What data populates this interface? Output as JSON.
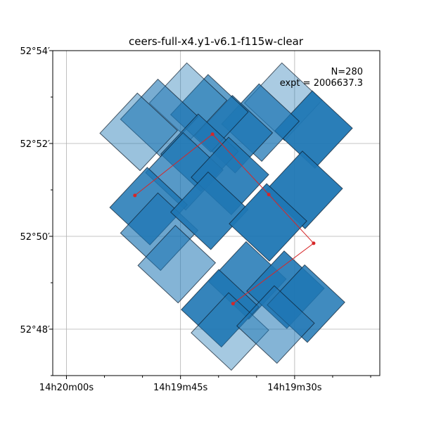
{
  "chart_data": {
    "type": "footprint-map",
    "title": "ceers-full-x4.y1-v6.1-f115w-clear",
    "xlabel": "",
    "ylabel": "",
    "annotations": {
      "n": "N=280",
      "expt": "expt = 2006637.3"
    },
    "x_ticks": [
      {
        "ra_s": 0,
        "label": "14h20m00s"
      },
      {
        "ra_s": 15,
        "label": "14h19m45s"
      },
      {
        "ra_s": 30,
        "label": "14h19m30s"
      }
    ],
    "y_ticks": [
      {
        "dec_arcmin": 54,
        "label": "52°54′"
      },
      {
        "dec_arcmin": 52,
        "label": "52°52′"
      },
      {
        "dec_arcmin": 50,
        "label": "52°50′"
      },
      {
        "dec_arcmin": 48,
        "label": "52°48′"
      }
    ],
    "xlim_ra_seconds_past_14h19m": [
      61.8,
      18.8
    ],
    "ylim_dec_arcmin_past_52deg": [
      47.0,
      54.0
    ],
    "grid": true,
    "footprint_color": "#1f77b4",
    "path_color": "#d62728",
    "path_points": [
      {
        "ra_s": 51.0,
        "dec_arcmin": 50.88
      },
      {
        "ra_s": 40.8,
        "dec_arcmin": 52.2
      },
      {
        "ra_s": 33.4,
        "dec_arcmin": 50.9
      },
      {
        "ra_s": 27.5,
        "dec_arcmin": 49.85
      },
      {
        "ra_s": 38.1,
        "dec_arcmin": 48.55
      }
    ],
    "footprints": [
      {
        "ra_s": 31.5,
        "dec_arcmin": 52.9,
        "alpha": 0.38
      },
      {
        "ra_s": 27.5,
        "dec_arcmin": 52.3,
        "alpha": 0.95
      },
      {
        "ra_s": 34.5,
        "dec_arcmin": 52.45,
        "alpha": 0.75
      },
      {
        "ra_s": 38.0,
        "dec_arcmin": 52.2,
        "alpha": 0.85
      },
      {
        "ra_s": 41.2,
        "dec_arcmin": 52.65,
        "alpha": 0.7
      },
      {
        "ra_s": 44.0,
        "dec_arcmin": 52.9,
        "alpha": 0.4
      },
      {
        "ra_s": 47.8,
        "dec_arcmin": 52.55,
        "alpha": 0.6
      },
      {
        "ra_s": 50.5,
        "dec_arcmin": 52.25,
        "alpha": 0.45
      },
      {
        "ra_s": 42.5,
        "dec_arcmin": 51.8,
        "alpha": 0.8
      },
      {
        "ra_s": 44.5,
        "dec_arcmin": 51.4,
        "alpha": 0.75
      },
      {
        "ra_s": 38.5,
        "dec_arcmin": 51.3,
        "alpha": 0.9
      },
      {
        "ra_s": 28.8,
        "dec_arcmin": 51.0,
        "alpha": 0.95
      },
      {
        "ra_s": 49.2,
        "dec_arcmin": 50.65,
        "alpha": 0.85
      },
      {
        "ra_s": 47.8,
        "dec_arcmin": 50.1,
        "alpha": 0.65
      },
      {
        "ra_s": 41.2,
        "dec_arcmin": 50.55,
        "alpha": 0.9
      },
      {
        "ra_s": 33.5,
        "dec_arcmin": 50.3,
        "alpha": 0.95
      },
      {
        "ra_s": 45.5,
        "dec_arcmin": 49.4,
        "alpha": 0.55
      },
      {
        "ra_s": 36.2,
        "dec_arcmin": 49.05,
        "alpha": 0.85
      },
      {
        "ra_s": 31.2,
        "dec_arcmin": 48.85,
        "alpha": 0.9
      },
      {
        "ra_s": 28.5,
        "dec_arcmin": 48.55,
        "alpha": 0.85
      },
      {
        "ra_s": 39.8,
        "dec_arcmin": 48.45,
        "alpha": 0.9
      },
      {
        "ra_s": 38.5,
        "dec_arcmin": 47.95,
        "alpha": 0.4
      },
      {
        "ra_s": 32.5,
        "dec_arcmin": 48.1,
        "alpha": 0.55
      }
    ]
  }
}
